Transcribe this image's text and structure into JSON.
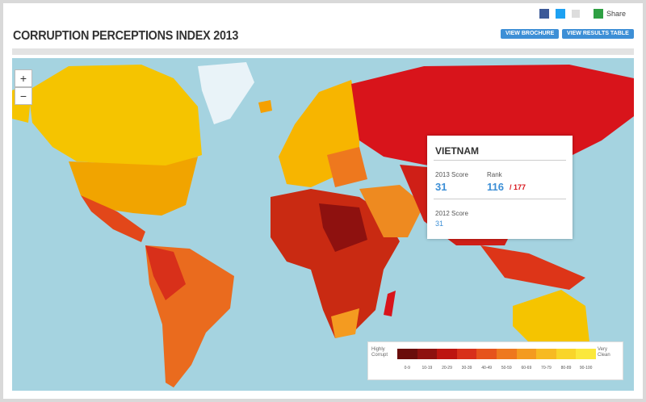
{
  "header": {
    "title": "CORRUPTION PERCEPTIONS INDEX 2013",
    "share": "Share",
    "buttons": [
      "VIEW BROCHURE",
      "VIEW RESULTS TABLE"
    ]
  },
  "map": {
    "zoom": [
      "+",
      "−"
    ],
    "popup": {
      "country": "VIETNAM",
      "score_2013_label": "2013 Score",
      "score_2013": 31,
      "rank_label": "Rank",
      "rank": 116,
      "rank_total": "/ 177",
      "score_2012_label": "2012 Score",
      "score_2012": 31
    },
    "legend": {
      "low_label": "Highly Corrupt",
      "high_label": "Very Clean",
      "bins": [
        {
          "label": "0-9",
          "color": "#6a0d0b"
        },
        {
          "label": "10-19",
          "color": "#8e110f"
        },
        {
          "label": "20-29",
          "color": "#bd1510"
        },
        {
          "label": "30-39",
          "color": "#d8301a"
        },
        {
          "label": "40-49",
          "color": "#e6531c"
        },
        {
          "label": "50-59",
          "color": "#ee781e"
        },
        {
          "label": "60-69",
          "color": "#f49b20"
        },
        {
          "label": "70-79",
          "color": "#f7ba22"
        },
        {
          "label": "80-89",
          "color": "#f9d52a"
        },
        {
          "label": "90-100",
          "color": "#fbe83c"
        }
      ]
    }
  }
}
